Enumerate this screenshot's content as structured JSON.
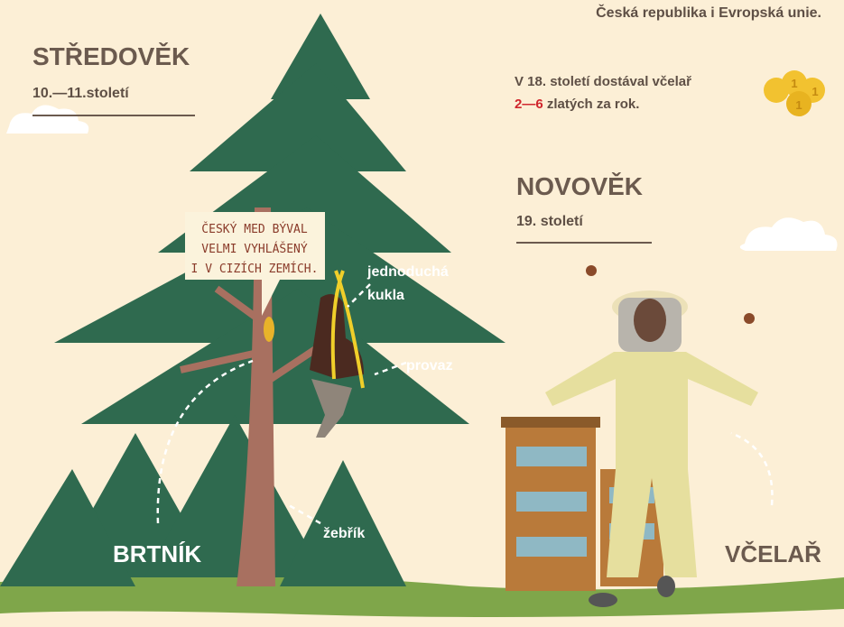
{
  "header": {
    "note": "Česká republika i  Evropská unie."
  },
  "medieval": {
    "title": "STŘEDOVĚK",
    "period": "10.—11.století"
  },
  "wage": {
    "line1": "V 18. století dostával včelař",
    "amount": "2—6",
    "line2": "zlatých za rok.",
    "coin_label": "1"
  },
  "modern": {
    "title": "NOVOVĚK",
    "period": "19. století"
  },
  "speech_bubble": {
    "lines": [
      "ČESKÝ MED BÝVAL",
      "VELMI VYHLÁŠENÝ",
      "I V CIZÍCH ZEMÍCH."
    ]
  },
  "labels": {
    "hood_1": "jednoduchá",
    "hood_2": "kukla",
    "rope": "provaz",
    "ladder": "žebřík",
    "forest_beekeeper": "BRTNÍK",
    "beekeeper": "VČELAŘ"
  }
}
